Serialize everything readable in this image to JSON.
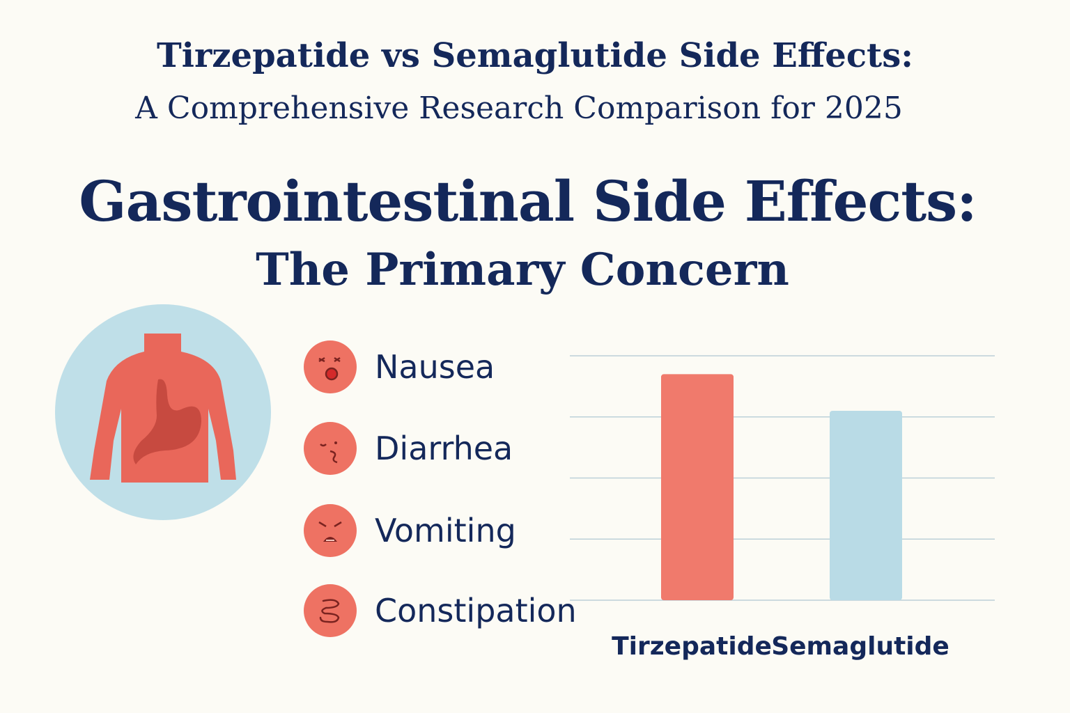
{
  "header": {
    "title": "Tirzepatide vs Semaglutide Side Effects:",
    "subtitle": "A Comprehensive Research Comparison for 2025"
  },
  "section": {
    "heading": "Gastrointestinal Side Effects:",
    "subheading": "The Primary Concern"
  },
  "side_effects": [
    {
      "label": "Nausea",
      "icon": "nausea-face-icon"
    },
    {
      "label": "Diarrhea",
      "icon": "diarrhea-face-icon"
    },
    {
      "label": "Vomiting",
      "icon": "vomiting-face-icon"
    },
    {
      "label": "Constipation",
      "icon": "intestine-icon"
    }
  ],
  "colors": {
    "navy": "#14285a",
    "tirzepatide": "#f07a6c",
    "semaglutide": "#b9dbe6",
    "body": "#e9675a",
    "circle": "#bfdfe8"
  },
  "chart_data": {
    "type": "bar",
    "categories": [
      "Tirzepatide",
      "Semaglutide"
    ],
    "values": [
      3.7,
      3.1
    ],
    "ylim": [
      0,
      4
    ],
    "grid": true,
    "title": "",
    "xlabel": "",
    "ylabel": ""
  }
}
